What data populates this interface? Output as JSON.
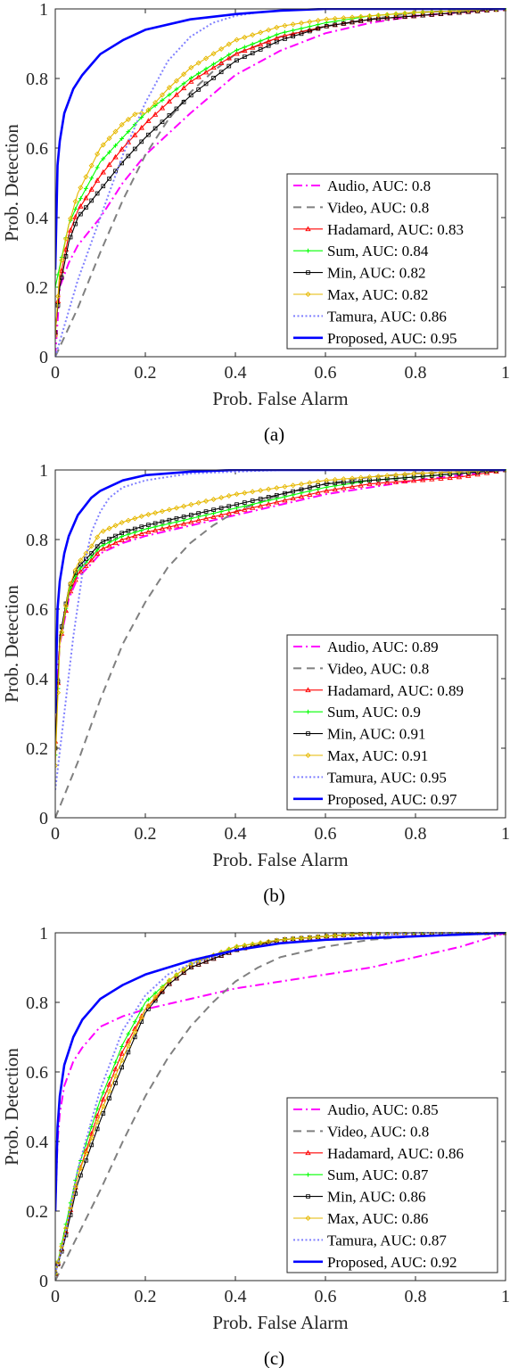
{
  "chart_data": [
    {
      "type": "line",
      "caption": "(a)",
      "xlabel": "Prob. False Alarm",
      "ylabel": "Prob. Detection",
      "xlim": [
        0,
        1
      ],
      "ylim": [
        0,
        1
      ],
      "xticks": [
        "0",
        "0.2",
        "0.4",
        "0.6",
        "0.8",
        "1"
      ],
      "yticks": [
        "0",
        "0.2",
        "0.4",
        "0.6",
        "0.8",
        "1"
      ],
      "grid": false,
      "legend_position": "bottom-right",
      "series": [
        {
          "name": "Audio, AUC: 0.8",
          "color": "#ff00ff",
          "style": "dashdot",
          "marker": "none",
          "x": [
            0,
            0.01,
            0.03,
            0.05,
            0.1,
            0.15,
            0.2,
            0.25,
            0.3,
            0.4,
            0.5,
            0.6,
            0.7,
            0.8,
            0.9,
            1.0
          ],
          "y": [
            0,
            0.2,
            0.27,
            0.32,
            0.4,
            0.5,
            0.58,
            0.64,
            0.7,
            0.81,
            0.88,
            0.93,
            0.96,
            0.98,
            0.99,
            1.0
          ]
        },
        {
          "name": "Video, AUC: 0.8",
          "color": "#808080",
          "style": "dashed",
          "marker": "none",
          "x": [
            0,
            0.05,
            0.1,
            0.15,
            0.2,
            0.25,
            0.3,
            0.35,
            0.4,
            0.5,
            0.6,
            0.7,
            0.8,
            1.0
          ],
          "y": [
            0,
            0.14,
            0.3,
            0.45,
            0.58,
            0.68,
            0.76,
            0.82,
            0.87,
            0.92,
            0.95,
            0.97,
            0.99,
            1.0
          ]
        },
        {
          "name": "Hadamard, AUC: 0.83",
          "color": "#ff0000",
          "style": "solid",
          "marker": "triangle",
          "x": [
            0,
            0.01,
            0.03,
            0.05,
            0.1,
            0.15,
            0.2,
            0.3,
            0.4,
            0.5,
            0.6,
            0.7,
            0.8,
            0.9,
            1.0
          ],
          "y": [
            0.07,
            0.22,
            0.35,
            0.42,
            0.52,
            0.6,
            0.67,
            0.79,
            0.87,
            0.92,
            0.95,
            0.97,
            0.98,
            0.99,
            1.0
          ]
        },
        {
          "name": "Sum, AUC: 0.84",
          "color": "#00ff00",
          "style": "solid",
          "marker": "plus",
          "x": [
            0,
            0.01,
            0.03,
            0.05,
            0.1,
            0.15,
            0.2,
            0.3,
            0.4,
            0.5,
            0.6,
            0.7,
            0.8,
            0.9,
            1.0
          ],
          "y": [
            0.2,
            0.26,
            0.38,
            0.44,
            0.56,
            0.63,
            0.7,
            0.8,
            0.88,
            0.93,
            0.96,
            0.98,
            0.99,
            0.995,
            1.0
          ]
        },
        {
          "name": "Min, AUC: 0.82",
          "color": "#000000",
          "style": "solid",
          "marker": "square",
          "x": [
            0,
            0.01,
            0.03,
            0.05,
            0.1,
            0.15,
            0.2,
            0.3,
            0.4,
            0.5,
            0.6,
            0.7,
            0.8,
            0.9,
            1.0
          ],
          "y": [
            0.07,
            0.2,
            0.33,
            0.4,
            0.48,
            0.56,
            0.63,
            0.75,
            0.85,
            0.91,
            0.95,
            0.97,
            0.98,
            0.99,
            1.0
          ]
        },
        {
          "name": "Max, AUC: 0.82",
          "color": "#e6b800",
          "style": "solid",
          "marker": "diamond",
          "x": [
            0,
            0.01,
            0.03,
            0.05,
            0.1,
            0.15,
            0.18,
            0.2,
            0.25,
            0.3,
            0.4,
            0.5,
            0.6,
            0.7,
            0.8,
            1.0
          ],
          "y": [
            0.06,
            0.25,
            0.38,
            0.47,
            0.6,
            0.67,
            0.7,
            0.7,
            0.77,
            0.83,
            0.91,
            0.95,
            0.97,
            0.98,
            0.99,
            1.0
          ]
        },
        {
          "name": "Tamura, AUC: 0.86",
          "color": "#8080ff",
          "style": "dotted",
          "marker": "none",
          "x": [
            0,
            0.05,
            0.1,
            0.15,
            0.2,
            0.25,
            0.3,
            0.35,
            0.4,
            0.45,
            0.5,
            0.6,
            1.0
          ],
          "y": [
            0,
            0.22,
            0.4,
            0.58,
            0.73,
            0.85,
            0.92,
            0.96,
            0.98,
            0.99,
            0.995,
            1.0,
            1.0
          ]
        },
        {
          "name": "Proposed, AUC: 0.95",
          "color": "#0000ff",
          "style": "solid",
          "marker": "none",
          "x": [
            0,
            0.005,
            0.01,
            0.02,
            0.04,
            0.06,
            0.08,
            0.1,
            0.15,
            0.2,
            0.3,
            0.4,
            0.5,
            0.6,
            1.0
          ],
          "y": [
            0.25,
            0.55,
            0.62,
            0.7,
            0.77,
            0.81,
            0.84,
            0.87,
            0.91,
            0.94,
            0.97,
            0.985,
            0.995,
            1.0,
            1.0
          ]
        }
      ]
    },
    {
      "type": "line",
      "caption": "(b)",
      "xlabel": "Prob. False Alarm",
      "ylabel": "Prob. Detection",
      "xlim": [
        0,
        1
      ],
      "ylim": [
        0,
        1
      ],
      "xticks": [
        "0",
        "0.2",
        "0.4",
        "0.6",
        "0.8",
        "1"
      ],
      "yticks": [
        "0",
        "0.2",
        "0.4",
        "0.6",
        "0.8",
        "1"
      ],
      "grid": false,
      "legend_position": "bottom-right",
      "series": [
        {
          "name": "Audio, AUC: 0.89",
          "color": "#ff00ff",
          "style": "dashdot",
          "marker": "none",
          "x": [
            0,
            0.01,
            0.03,
            0.05,
            0.08,
            0.1,
            0.15,
            0.2,
            0.3,
            0.4,
            0.5,
            0.6,
            0.7,
            0.8,
            0.9,
            1.0
          ],
          "y": [
            0.3,
            0.5,
            0.63,
            0.69,
            0.73,
            0.76,
            0.79,
            0.81,
            0.84,
            0.87,
            0.9,
            0.93,
            0.95,
            0.97,
            0.985,
            1.0
          ]
        },
        {
          "name": "Video, AUC: 0.8",
          "color": "#808080",
          "style": "dashed",
          "marker": "none",
          "x": [
            0,
            0.05,
            0.1,
            0.15,
            0.2,
            0.25,
            0.3,
            0.35,
            0.4,
            0.5,
            0.6,
            0.7,
            0.8,
            1.0
          ],
          "y": [
            0,
            0.16,
            0.34,
            0.5,
            0.62,
            0.72,
            0.79,
            0.84,
            0.88,
            0.93,
            0.96,
            0.98,
            0.99,
            1.0
          ]
        },
        {
          "name": "Hadamard, AUC: 0.89",
          "color": "#ff0000",
          "style": "solid",
          "marker": "triangle",
          "x": [
            0,
            0.01,
            0.03,
            0.05,
            0.08,
            0.1,
            0.15,
            0.2,
            0.3,
            0.4,
            0.5,
            0.6,
            0.7,
            0.8,
            0.9,
            1.0
          ],
          "y": [
            0.22,
            0.5,
            0.64,
            0.7,
            0.74,
            0.77,
            0.8,
            0.82,
            0.85,
            0.88,
            0.91,
            0.94,
            0.96,
            0.97,
            0.98,
            1.0
          ]
        },
        {
          "name": "Sum, AUC: 0.9",
          "color": "#00ff00",
          "style": "solid",
          "marker": "plus",
          "x": [
            0,
            0.01,
            0.03,
            0.05,
            0.08,
            0.1,
            0.15,
            0.2,
            0.3,
            0.4,
            0.5,
            0.6,
            0.7,
            0.8,
            0.9,
            1.0
          ],
          "y": [
            0.18,
            0.5,
            0.65,
            0.71,
            0.75,
            0.78,
            0.81,
            0.83,
            0.86,
            0.89,
            0.92,
            0.95,
            0.97,
            0.98,
            0.99,
            1.0
          ]
        },
        {
          "name": "Min, AUC: 0.91",
          "color": "#000000",
          "style": "solid",
          "marker": "square",
          "x": [
            0,
            0.01,
            0.03,
            0.05,
            0.08,
            0.1,
            0.15,
            0.2,
            0.3,
            0.4,
            0.5,
            0.6,
            0.7,
            0.8,
            0.9,
            1.0
          ],
          "y": [
            0.2,
            0.52,
            0.66,
            0.72,
            0.76,
            0.79,
            0.82,
            0.84,
            0.87,
            0.9,
            0.93,
            0.96,
            0.97,
            0.98,
            0.99,
            1.0
          ]
        },
        {
          "name": "Max, AUC: 0.91",
          "color": "#e6b800",
          "style": "solid",
          "marker": "diamond",
          "x": [
            0,
            0.01,
            0.03,
            0.05,
            0.08,
            0.1,
            0.15,
            0.2,
            0.3,
            0.4,
            0.5,
            0.6,
            0.7,
            0.8,
            0.9,
            1.0
          ],
          "y": [
            0.15,
            0.5,
            0.66,
            0.73,
            0.78,
            0.82,
            0.85,
            0.87,
            0.9,
            0.93,
            0.95,
            0.97,
            0.98,
            0.99,
            0.995,
            1.0
          ]
        },
        {
          "name": "Tamura, AUC: 0.95",
          "color": "#8080ff",
          "style": "dotted",
          "marker": "none",
          "x": [
            0,
            0.02,
            0.04,
            0.06,
            0.08,
            0.1,
            0.12,
            0.15,
            0.2,
            0.3,
            0.4,
            0.5,
            1.0
          ],
          "y": [
            0.08,
            0.3,
            0.52,
            0.7,
            0.82,
            0.88,
            0.92,
            0.95,
            0.97,
            0.99,
            0.995,
            1.0,
            1.0
          ]
        },
        {
          "name": "Proposed, AUC: 0.97",
          "color": "#0000ff",
          "style": "solid",
          "marker": "none",
          "x": [
            0,
            0.005,
            0.01,
            0.02,
            0.03,
            0.05,
            0.08,
            0.1,
            0.15,
            0.2,
            0.3,
            0.4,
            0.5,
            1.0
          ],
          "y": [
            0.3,
            0.6,
            0.68,
            0.76,
            0.81,
            0.87,
            0.92,
            0.94,
            0.97,
            0.985,
            0.995,
            1.0,
            1.0,
            1.0
          ]
        }
      ]
    },
    {
      "type": "line",
      "caption": "(c)",
      "xlabel": "Prob. False Alarm",
      "ylabel": "Prob. Detection",
      "xlim": [
        0,
        1
      ],
      "ylim": [
        0,
        1
      ],
      "xticks": [
        "0",
        "0.2",
        "0.4",
        "0.6",
        "0.8",
        "1"
      ],
      "yticks": [
        "0",
        "0.2",
        "0.4",
        "0.6",
        "0.8",
        "1"
      ],
      "grid": false,
      "legend_position": "bottom-right",
      "series": [
        {
          "name": "Audio, AUC: 0.85",
          "color": "#ff00ff",
          "style": "dashdot",
          "marker": "none",
          "x": [
            0,
            0.005,
            0.01,
            0.02,
            0.04,
            0.06,
            0.08,
            0.1,
            0.15,
            0.2,
            0.3,
            0.4,
            0.5,
            0.6,
            0.7,
            0.8,
            0.9,
            1.0
          ],
          "y": [
            0.2,
            0.4,
            0.48,
            0.56,
            0.63,
            0.67,
            0.7,
            0.73,
            0.76,
            0.78,
            0.81,
            0.84,
            0.86,
            0.88,
            0.9,
            0.93,
            0.96,
            1.0
          ]
        },
        {
          "name": "Video, AUC: 0.8",
          "color": "#808080",
          "style": "dashed",
          "marker": "none",
          "x": [
            0,
            0.05,
            0.1,
            0.15,
            0.2,
            0.25,
            0.3,
            0.35,
            0.4,
            0.45,
            0.5,
            0.6,
            0.7,
            0.8,
            1.0
          ],
          "y": [
            0,
            0.13,
            0.26,
            0.4,
            0.53,
            0.64,
            0.73,
            0.8,
            0.86,
            0.9,
            0.93,
            0.96,
            0.98,
            0.99,
            1.0
          ]
        },
        {
          "name": "Hadamard, AUC: 0.86",
          "color": "#ff0000",
          "style": "solid",
          "marker": "triangle",
          "x": [
            0,
            0.02,
            0.05,
            0.1,
            0.15,
            0.2,
            0.25,
            0.3,
            0.4,
            0.5,
            0.6,
            0.7,
            0.8,
            1.0
          ],
          "y": [
            0.02,
            0.12,
            0.3,
            0.5,
            0.66,
            0.78,
            0.85,
            0.9,
            0.95,
            0.98,
            0.99,
            1.0,
            1.0,
            1.0
          ]
        },
        {
          "name": "Sum, AUC: 0.87",
          "color": "#00ff00",
          "style": "solid",
          "marker": "plus",
          "x": [
            0,
            0.02,
            0.05,
            0.1,
            0.15,
            0.2,
            0.25,
            0.3,
            0.4,
            0.5,
            0.6,
            0.7,
            0.8,
            1.0
          ],
          "y": [
            0.02,
            0.14,
            0.32,
            0.52,
            0.68,
            0.8,
            0.86,
            0.91,
            0.96,
            0.98,
            0.99,
            1.0,
            1.0,
            1.0
          ]
        },
        {
          "name": "Min, AUC: 0.86",
          "color": "#000000",
          "style": "solid",
          "marker": "square",
          "x": [
            0,
            0.02,
            0.05,
            0.1,
            0.15,
            0.2,
            0.25,
            0.3,
            0.4,
            0.5,
            0.6,
            0.7,
            0.8,
            1.0
          ],
          "y": [
            0.02,
            0.11,
            0.28,
            0.46,
            0.62,
            0.77,
            0.85,
            0.9,
            0.95,
            0.98,
            0.99,
            1.0,
            1.0,
            1.0
          ]
        },
        {
          "name": "Max, AUC: 0.86",
          "color": "#e6b800",
          "style": "solid",
          "marker": "diamond",
          "x": [
            0,
            0.02,
            0.05,
            0.1,
            0.15,
            0.2,
            0.25,
            0.3,
            0.4,
            0.5,
            0.6,
            0.7,
            0.8,
            1.0
          ],
          "y": [
            0.02,
            0.13,
            0.3,
            0.48,
            0.64,
            0.78,
            0.86,
            0.91,
            0.96,
            0.98,
            0.99,
            1.0,
            1.0,
            1.0
          ]
        },
        {
          "name": "Tamura, AUC: 0.87",
          "color": "#8080ff",
          "style": "dotted",
          "marker": "none",
          "x": [
            0,
            0.02,
            0.05,
            0.1,
            0.15,
            0.2,
            0.25,
            0.3,
            0.4,
            0.5,
            0.6,
            0.7,
            0.8,
            1.0
          ],
          "y": [
            0.02,
            0.12,
            0.32,
            0.55,
            0.72,
            0.82,
            0.88,
            0.91,
            0.95,
            0.97,
            0.98,
            0.99,
            1.0,
            1.0
          ]
        },
        {
          "name": "Proposed, AUC: 0.92",
          "color": "#0000ff",
          "style": "solid",
          "marker": "none",
          "x": [
            0,
            0.005,
            0.01,
            0.02,
            0.04,
            0.06,
            0.08,
            0.1,
            0.15,
            0.2,
            0.3,
            0.4,
            0.5,
            0.6,
            0.8,
            1.0
          ],
          "y": [
            0.2,
            0.44,
            0.53,
            0.62,
            0.7,
            0.75,
            0.78,
            0.81,
            0.85,
            0.88,
            0.92,
            0.95,
            0.97,
            0.98,
            0.99,
            1.0
          ]
        }
      ]
    }
  ]
}
